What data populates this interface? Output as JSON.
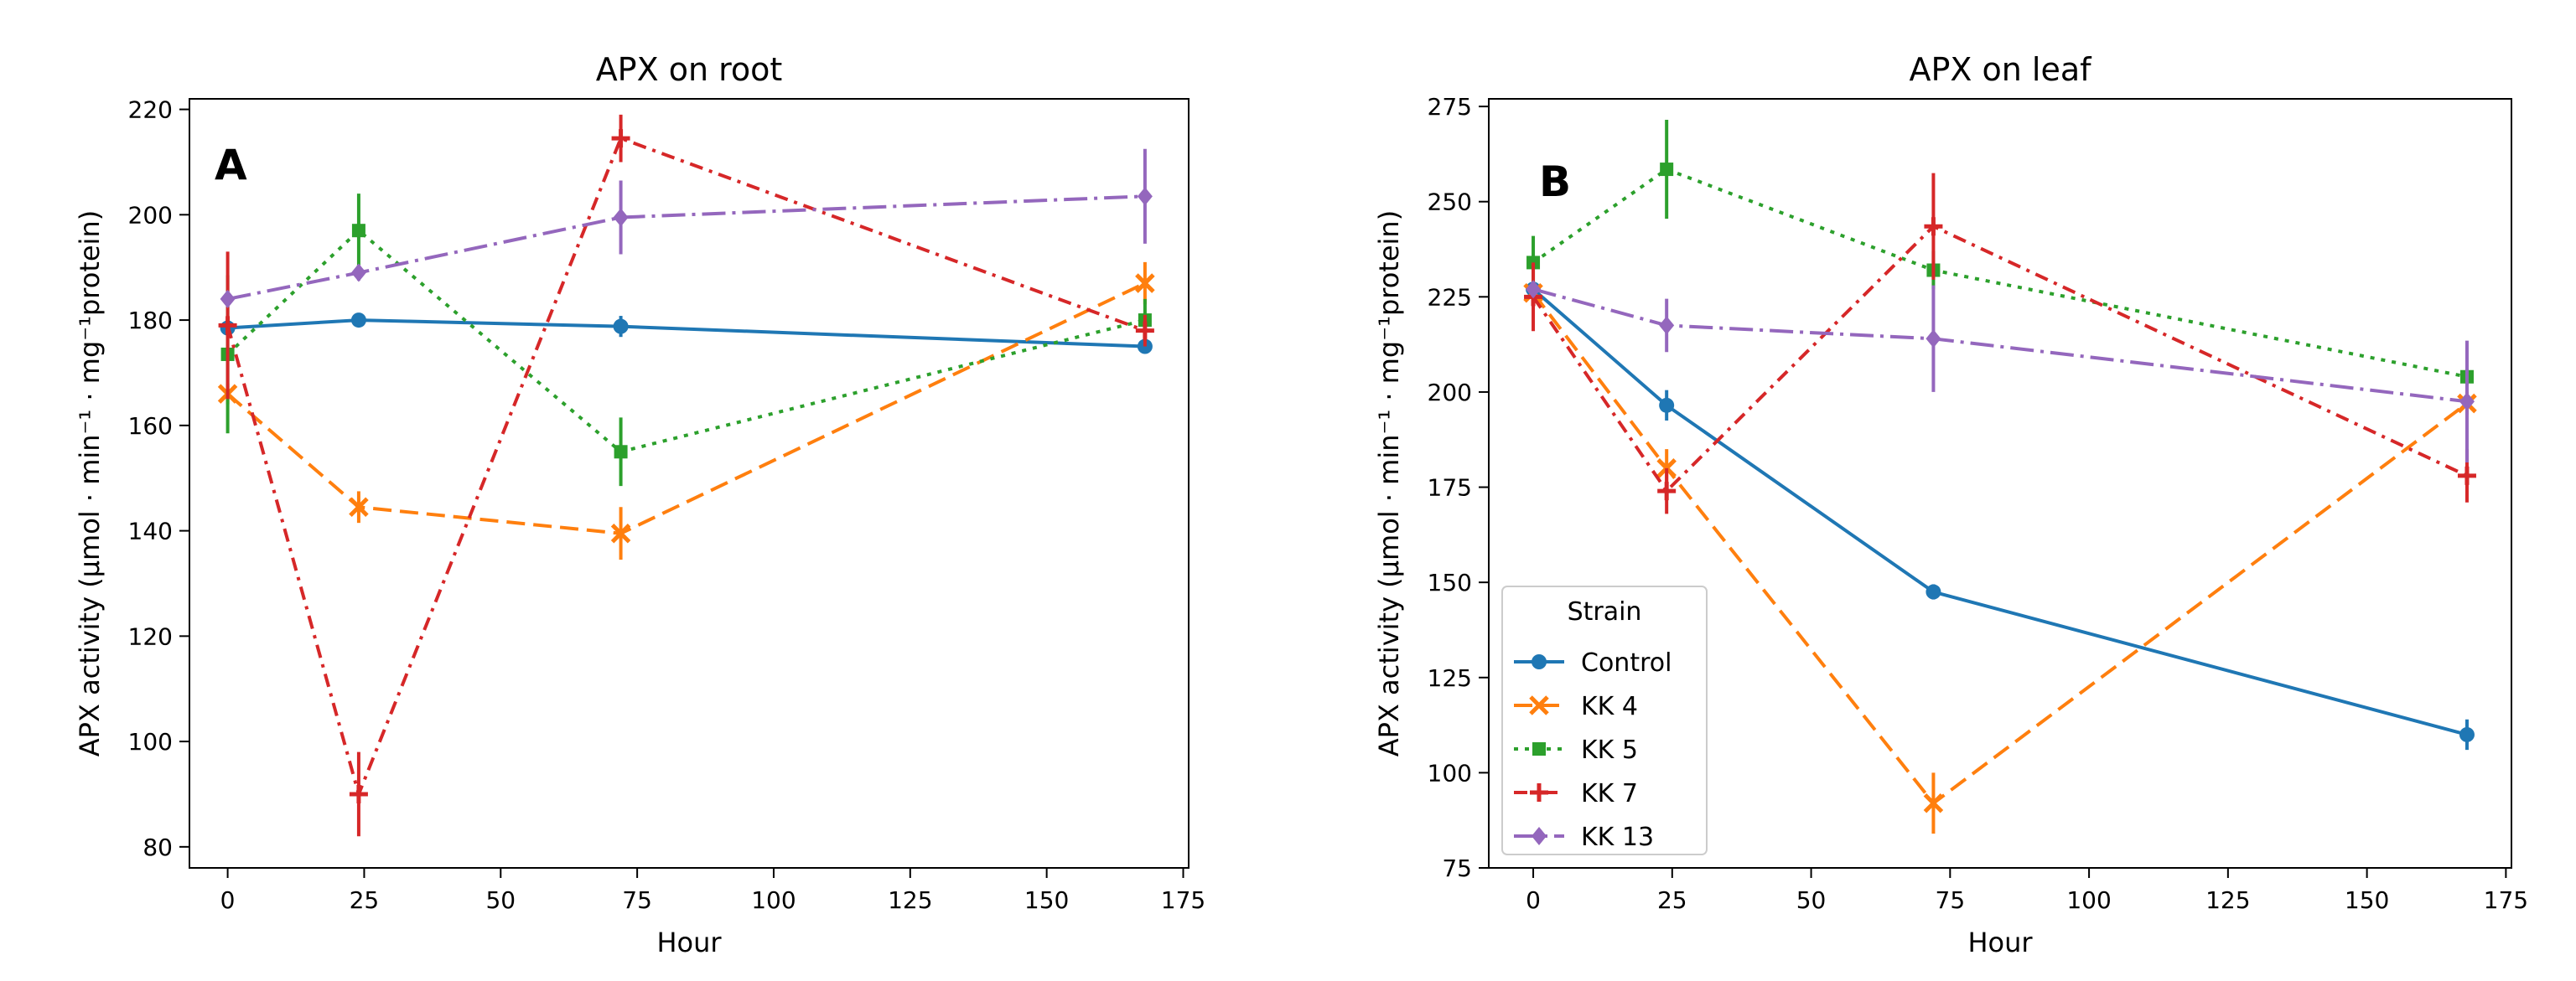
{
  "colors": {
    "Control": "#1f77b4",
    "KK 4": "#ff7f0e",
    "KK 5": "#2ca02c",
    "KK 7": "#d62728",
    "KK 13": "#9467bd"
  },
  "legend": {
    "title": "Strain",
    "placement": "lower-left",
    "entries": [
      "Control",
      "KK 4",
      "KK 5",
      "KK 7",
      "KK 13"
    ]
  },
  "chart_data": [
    {
      "type": "line",
      "panel_letter": "A",
      "title": "APX on root",
      "xlabel": "Hour",
      "ylabel": "APX activity (μmol · min⁻¹ · mg⁻¹protein)",
      "xlim": [
        -7,
        176
      ],
      "ylim": [
        76,
        222
      ],
      "xticks": [
        0,
        25,
        50,
        75,
        100,
        125,
        150,
        175
      ],
      "yticks": [
        80,
        100,
        120,
        140,
        160,
        180,
        200,
        220
      ],
      "x": [
        0,
        24,
        72,
        168
      ],
      "grid": false,
      "series": [
        {
          "name": "Control",
          "marker": "circle",
          "linestyle": "solid",
          "values": [
            178.5,
            180,
            178.8,
            175
          ],
          "errors": [
            1.5,
            0.5,
            2,
            0.5
          ]
        },
        {
          "name": "KK 4",
          "marker": "x",
          "linestyle": "dashed",
          "values": [
            166,
            144.5,
            139.5,
            187
          ],
          "errors": [
            2,
            3,
            5,
            4
          ]
        },
        {
          "name": "KK 5",
          "marker": "square",
          "linestyle": "dotted",
          "values": [
            173.5,
            197,
            155,
            180
          ],
          "errors": [
            15,
            7,
            6.5,
            4
          ]
        },
        {
          "name": "KK 7",
          "marker": "plus",
          "linestyle": "dashdot",
          "values": [
            179,
            90,
            214.5,
            178
          ],
          "errors": [
            14,
            8,
            4.5,
            3
          ]
        },
        {
          "name": "KK 13",
          "marker": "diamond",
          "linestyle": "longdashdot",
          "values": [
            184,
            189,
            199.5,
            203.5
          ],
          "errors": [
            1.5,
            1.5,
            7,
            9
          ]
        }
      ]
    },
    {
      "type": "line",
      "panel_letter": "B",
      "title": "APX on leaf",
      "xlabel": "Hour",
      "ylabel": "APX activity (μmol · min⁻¹ · mg⁻¹protein)",
      "xlim": [
        -8,
        176
      ],
      "ylim": [
        75,
        277
      ],
      "xticks": [
        0,
        25,
        50,
        75,
        100,
        125,
        150,
        175
      ],
      "yticks": [
        75,
        100,
        125,
        150,
        175,
        200,
        225,
        250,
        275
      ],
      "x": [
        0,
        24,
        72,
        168
      ],
      "grid": false,
      "series": [
        {
          "name": "Control",
          "marker": "circle",
          "linestyle": "solid",
          "values": [
            227,
            196.5,
            147.5,
            110
          ],
          "errors": [
            1,
            4,
            2,
            4
          ]
        },
        {
          "name": "KK 4",
          "marker": "x",
          "linestyle": "dashed",
          "values": [
            226,
            180,
            92,
            197
          ],
          "errors": [
            2,
            5,
            8,
            3
          ]
        },
        {
          "name": "KK 5",
          "marker": "square",
          "linestyle": "dotted",
          "values": [
            234,
            258.5,
            232,
            204
          ],
          "errors": [
            7,
            13,
            5,
            2
          ]
        },
        {
          "name": "KK 7",
          "marker": "plus",
          "linestyle": "dashdot",
          "values": [
            225,
            174,
            243.5,
            178
          ],
          "errors": [
            9,
            6,
            14,
            7
          ]
        },
        {
          "name": "KK 13",
          "marker": "diamond",
          "linestyle": "longdashdot",
          "values": [
            227,
            217.5,
            214,
            197.5
          ],
          "errors": [
            2,
            7,
            14,
            16
          ]
        }
      ]
    }
  ]
}
